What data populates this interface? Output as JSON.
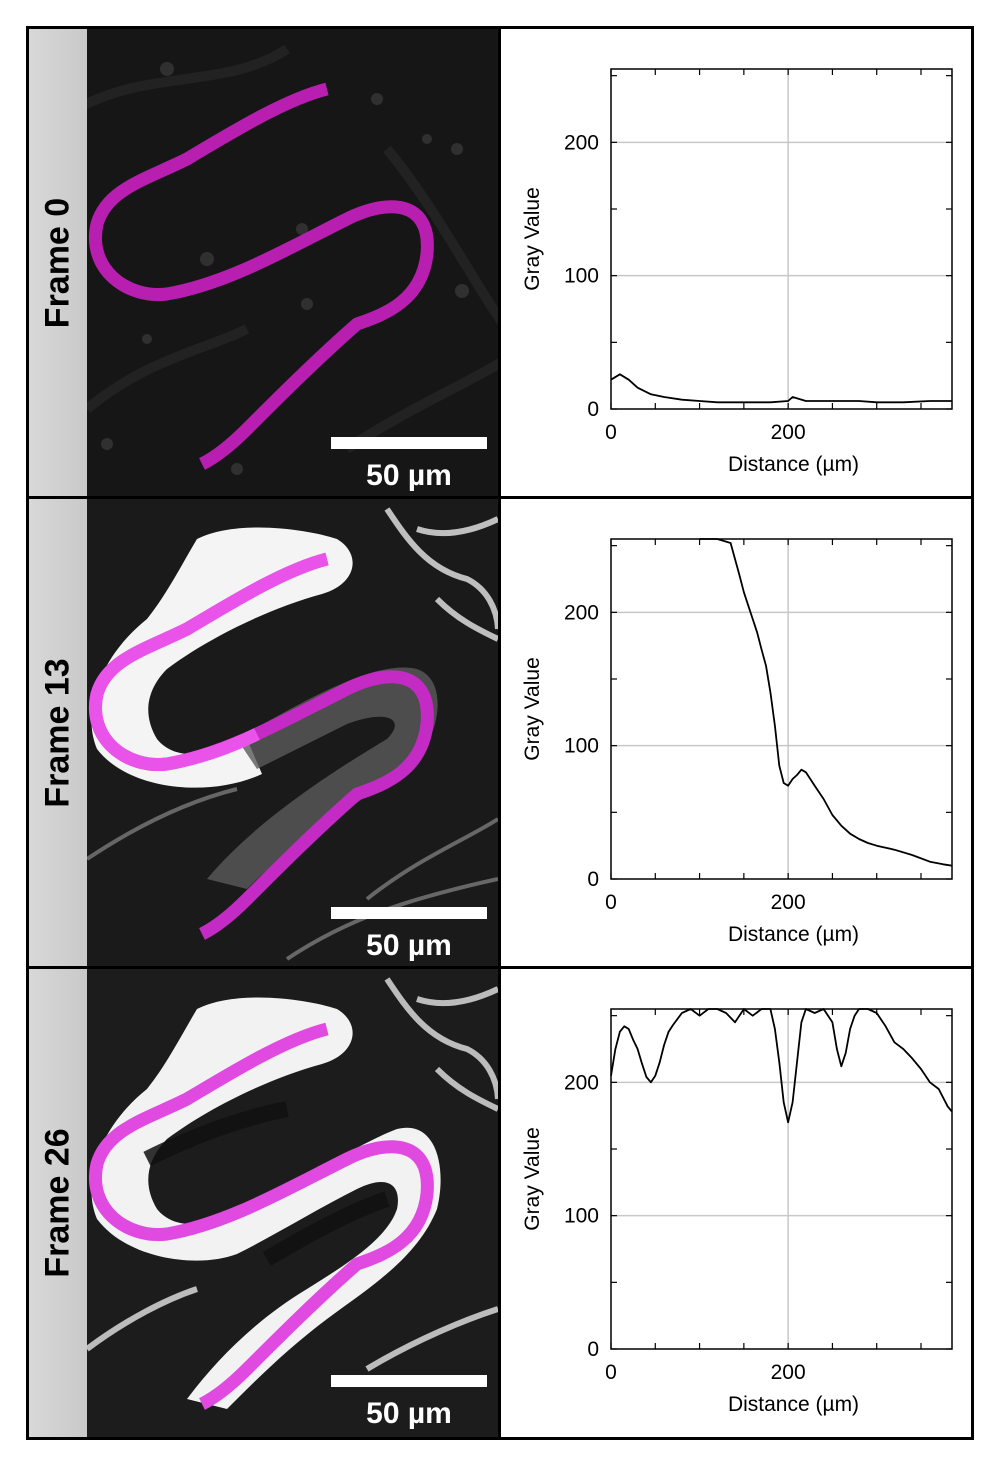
{
  "panels": [
    {
      "frame_label": "Frame 0",
      "scale_bar_label": "50 µm",
      "brightness": "dark",
      "trace_color": "#b81fb0"
    },
    {
      "frame_label": "Frame 13",
      "scale_bar_label": "50 µm",
      "brightness": "partial",
      "trace_color": "#c42ac4"
    },
    {
      "frame_label": "Frame 26",
      "scale_bar_label": "50 µm",
      "brightness": "bright",
      "trace_color": "#e04ae0"
    }
  ],
  "chart_data": [
    {
      "type": "line",
      "xlabel": "Distance (µm)",
      "ylabel": "Gray Value",
      "xlim": [
        0,
        385
      ],
      "ylim": [
        0,
        255
      ],
      "xticks": [
        0,
        200
      ],
      "yticks": [
        0,
        100,
        200
      ],
      "grid": true,
      "series": [
        {
          "x": [
            0,
            10,
            20,
            30,
            45,
            60,
            80,
            100,
            120,
            150,
            180,
            200,
            205,
            220,
            250,
            280,
            300,
            330,
            360,
            385
          ],
          "values": [
            22,
            26,
            22,
            16,
            11,
            9,
            7,
            6,
            5,
            5,
            5,
            6,
            9,
            6,
            6,
            6,
            5,
            5,
            6,
            6
          ]
        }
      ]
    },
    {
      "type": "line",
      "xlabel": "Distance (µm)",
      "ylabel": "Gray Value",
      "xlim": [
        0,
        385
      ],
      "ylim": [
        0,
        255
      ],
      "xticks": [
        0,
        200
      ],
      "yticks": [
        0,
        100,
        200
      ],
      "grid": true,
      "series": [
        {
          "x": [
            100,
            120,
            135,
            140,
            145,
            150,
            155,
            160,
            165,
            170,
            175,
            180,
            185,
            190,
            195,
            200,
            205,
            210,
            215,
            220,
            225,
            230,
            240,
            250,
            260,
            270,
            280,
            290,
            300,
            320,
            340,
            360,
            375,
            385
          ],
          "values": [
            255,
            255,
            252,
            240,
            228,
            215,
            205,
            195,
            185,
            172,
            160,
            140,
            115,
            85,
            72,
            70,
            75,
            78,
            82,
            80,
            75,
            70,
            60,
            48,
            40,
            34,
            30,
            27,
            25,
            22,
            18,
            13,
            11,
            10
          ]
        }
      ]
    },
    {
      "type": "line",
      "xlabel": "Distance (µm)",
      "ylabel": "Gray Value",
      "xlim": [
        0,
        385
      ],
      "ylim": [
        0,
        255
      ],
      "xticks": [
        0,
        200
      ],
      "yticks": [
        0,
        100,
        200
      ],
      "grid": true,
      "series": [
        {
          "x": [
            0,
            5,
            10,
            15,
            20,
            25,
            30,
            35,
            40,
            45,
            50,
            55,
            60,
            65,
            70,
            80,
            90,
            100,
            110,
            120,
            130,
            140,
            150,
            160,
            170,
            180,
            185,
            190,
            195,
            200,
            205,
            210,
            215,
            220,
            230,
            240,
            250,
            255,
            260,
            265,
            270,
            275,
            280,
            290,
            300,
            310,
            320,
            330,
            340,
            350,
            360,
            370,
            380,
            385
          ],
          "values": [
            205,
            225,
            238,
            242,
            240,
            232,
            225,
            214,
            204,
            200,
            205,
            215,
            228,
            238,
            243,
            252,
            255,
            250,
            255,
            255,
            252,
            245,
            255,
            250,
            255,
            255,
            240,
            215,
            185,
            170,
            185,
            215,
            245,
            255,
            252,
            255,
            245,
            225,
            212,
            222,
            240,
            250,
            255,
            255,
            252,
            242,
            230,
            225,
            218,
            210,
            200,
            195,
            182,
            178
          ]
        }
      ]
    }
  ]
}
